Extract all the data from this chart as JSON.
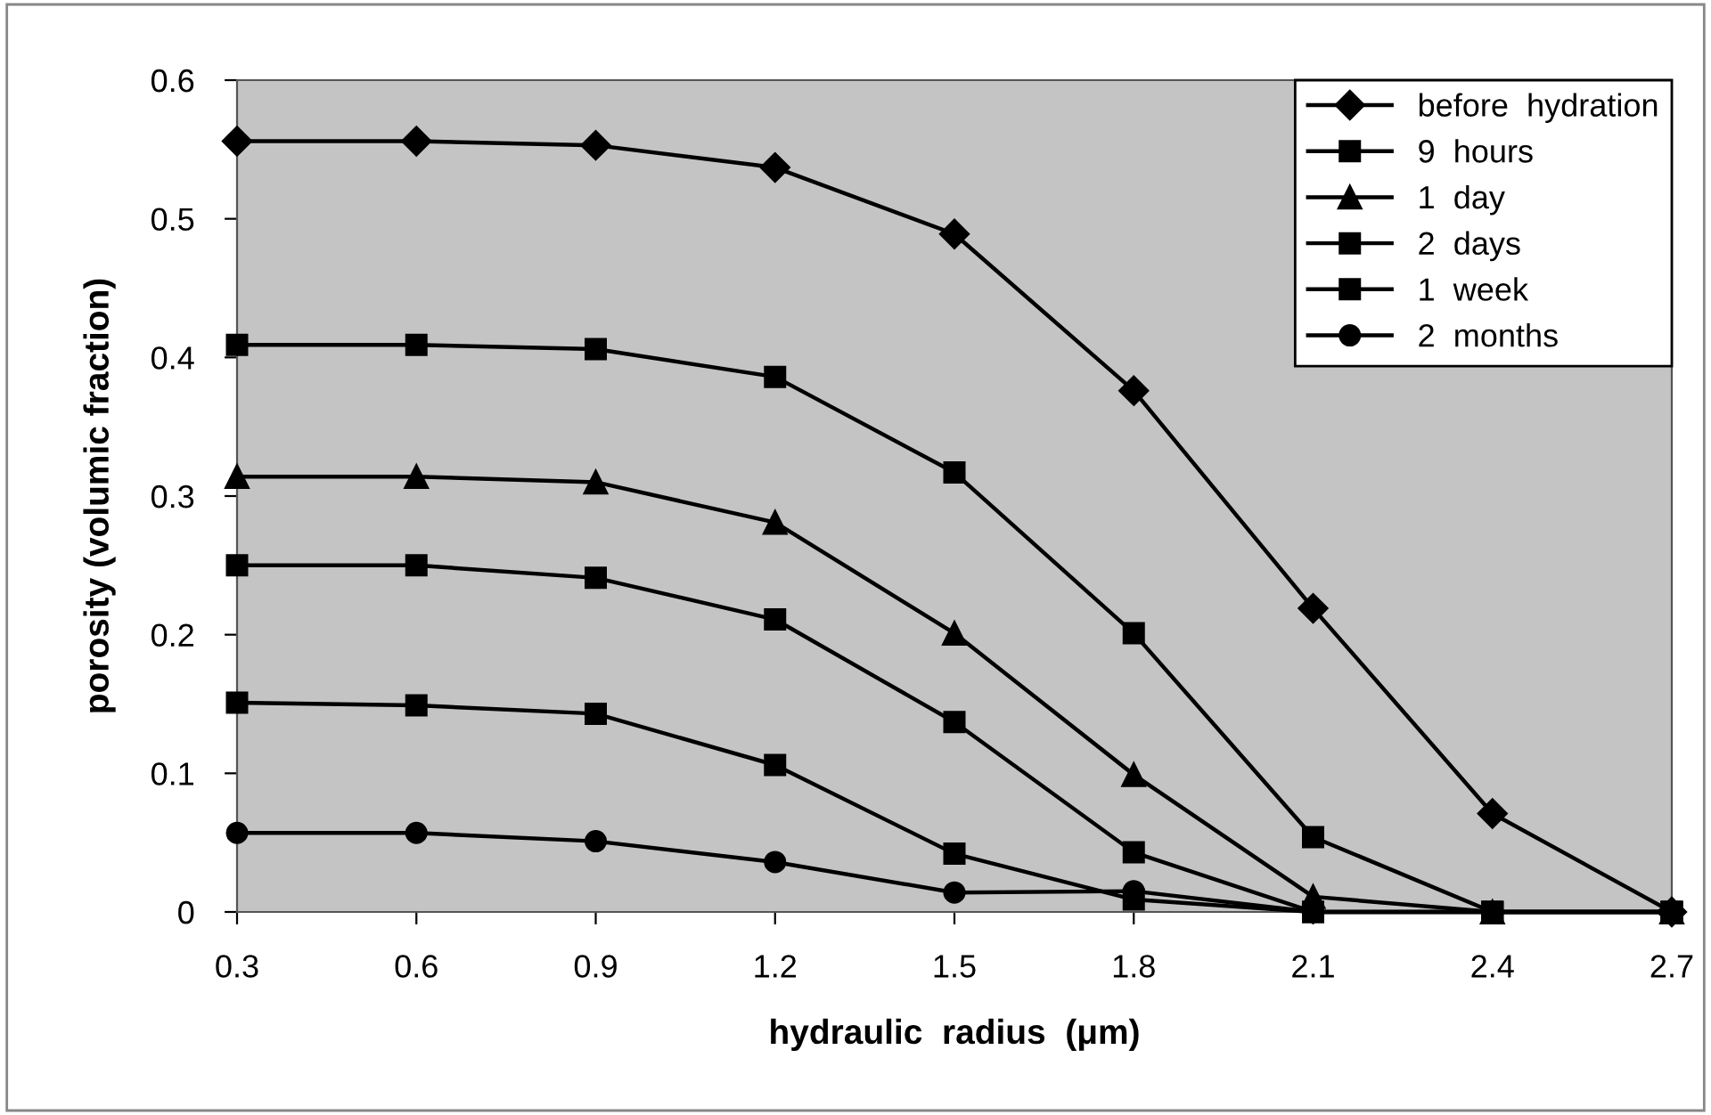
{
  "chart_data": {
    "type": "line",
    "xlabel": "hydraulic  radius  (μm)",
    "ylabel": "porosity (volumic fraction)",
    "categories": [
      "0.3",
      "0.6",
      "0.9",
      "1.2",
      "1.5",
      "1.8",
      "2.1",
      "2.4",
      "2.7"
    ],
    "ylim": [
      0,
      0.6
    ],
    "yticks": [
      0,
      0.1,
      0.2,
      0.3,
      0.4,
      0.5,
      0.6
    ],
    "grid": false,
    "legend": "top right",
    "line_style": "solid",
    "series": [
      {
        "name": "before  hydration",
        "color": "#000000",
        "marker": "diamond",
        "values": [
          0.556,
          0.556,
          0.553,
          0.537,
          0.489,
          0.376,
          0.219,
          0.071,
          0
        ]
      },
      {
        "name": "9  hours",
        "color": "#000000",
        "marker": "square",
        "values": [
          0.409,
          0.409,
          0.406,
          0.386,
          0.317,
          0.201,
          0.054,
          0,
          0
        ]
      },
      {
        "name": "1  day",
        "color": "#000000",
        "marker": "triangle",
        "values": [
          0.314,
          0.314,
          0.31,
          0.281,
          0.201,
          0.099,
          0.011,
          0,
          0
        ]
      },
      {
        "name": "2  days",
        "color": "#000000",
        "marker": "square",
        "values": [
          0.25,
          0.25,
          0.241,
          0.211,
          0.137,
          0.043,
          0,
          0,
          0
        ]
      },
      {
        "name": "1  week",
        "color": "#000000",
        "marker": "square",
        "values": [
          0.151,
          0.149,
          0.143,
          0.106,
          0.042,
          0.009,
          0,
          0,
          0
        ]
      },
      {
        "name": "2  months",
        "color": "#000000",
        "marker": "circle",
        "values": [
          0.057,
          0.057,
          0.051,
          0.036,
          0.014,
          0.015,
          0,
          0,
          0
        ]
      }
    ]
  }
}
